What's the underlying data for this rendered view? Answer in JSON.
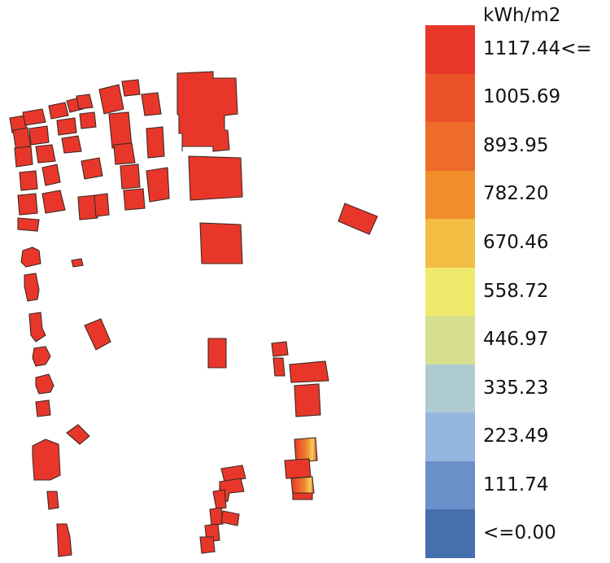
{
  "legend": {
    "unit": "kWh/m2",
    "labels": [
      "1117.44<=",
      "1005.69",
      "893.95",
      "782.20",
      "670.46",
      "558.72",
      "446.97",
      "335.23",
      "223.49",
      "111.74",
      "<=0.00"
    ],
    "colors": [
      "#e8372a",
      "#ec5228",
      "#ee6c2a",
      "#f08e2c",
      "#f2bd43",
      "#eeea6c",
      "#d6e08f",
      "#aecbd2",
      "#94b6de",
      "#6b8fc9",
      "#4570ad"
    ]
  },
  "map": {
    "building_color": "#e8372a",
    "highlight_color": "#f4d060",
    "warm_color": "#f08a2c"
  }
}
